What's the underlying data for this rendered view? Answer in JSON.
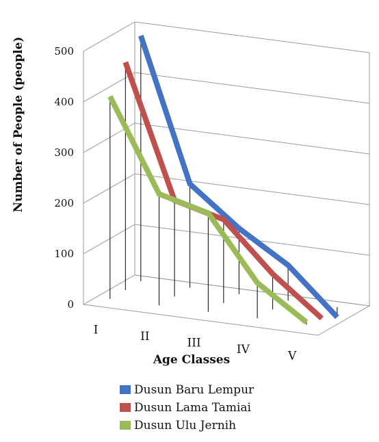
{
  "chart_data": {
    "type": "line",
    "style": "3d",
    "categories": [
      "I",
      "II",
      "III",
      "IV",
      "V"
    ],
    "series": [
      {
        "name": "Dusun Baru Lempur",
        "color": "#4472c4",
        "values": [
          485,
          205,
          130,
          70,
          -20
        ]
      },
      {
        "name": "Dusun Lama Tamiai",
        "color": "#c0504d",
        "values": [
          450,
          190,
          165,
          70,
          -5
        ]
      },
      {
        "name": "Dusun Ulu Jernih",
        "color": "#9bbb59",
        "values": [
          400,
          220,
          195,
          70,
          5
        ]
      }
    ],
    "y_ticks": [
      "0",
      "100",
      "200",
      "300",
      "400",
      "500"
    ],
    "ylim": [
      0,
      500
    ],
    "xlabel": "Age Classes",
    "ylabel": "Number of People (people)",
    "grid": true,
    "legend_position": "bottom"
  }
}
